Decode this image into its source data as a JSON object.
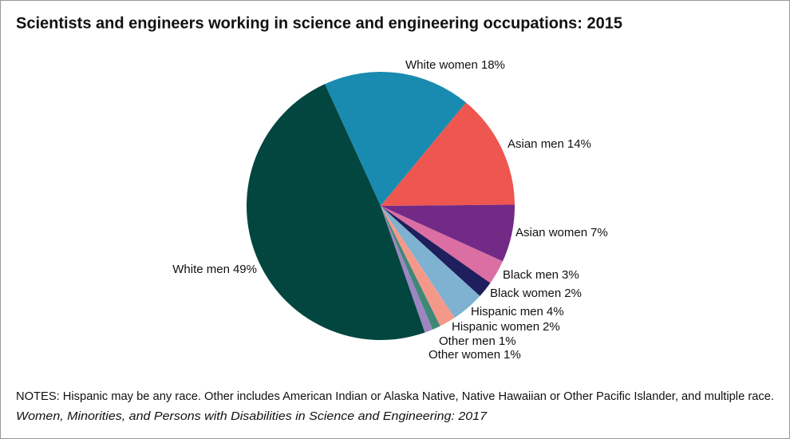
{
  "chart_data": {
    "type": "pie",
    "title": "Scientists and engineers working in science and engineering occupations: 2015",
    "categories": [
      "White women",
      "Asian men",
      "Asian women",
      "Black men",
      "Black women",
      "Hispanic men",
      "Hispanic women",
      "Other men",
      "Other women",
      "White men"
    ],
    "values": [
      18,
      14,
      7,
      3,
      2,
      4,
      2,
      1,
      1,
      49
    ],
    "value_labels": [
      "18%",
      "14%",
      "7%",
      "3%",
      "2%",
      "4%",
      "2%",
      "1%",
      "1%",
      "49%"
    ],
    "colors": [
      "#1a8bb0",
      "#ee5650",
      "#722a86",
      "#db6ea3",
      "#1e1f5c",
      "#7fb1d1",
      "#f4998a",
      "#3f8877",
      "#9d85c1",
      "#02463f"
    ],
    "notes": "NOTES: Hispanic may be any race. Other includes American Indian or Alaska Native, Native Hawaiian or Other Pacific Islander, and multiple race.",
    "source": "Women, Minorities, and Persons with Disabilities in Science and Engineering: 2017"
  }
}
